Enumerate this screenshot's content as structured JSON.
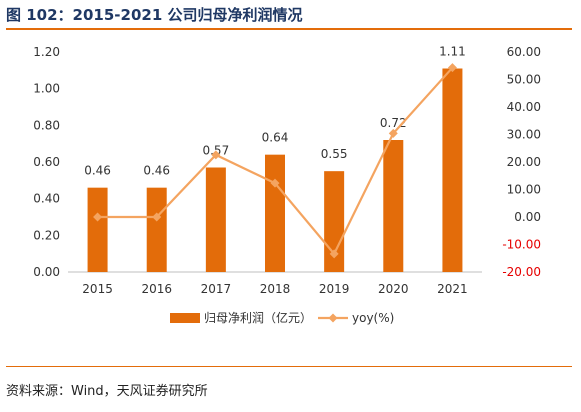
{
  "title": "图 102：2015-2021 公司归母净利润情况",
  "source": "资料来源：Wind，天风证券研究所",
  "colors": {
    "bar": "#e36c0a",
    "line": "#f4a460",
    "negative_tick": "#e60000",
    "title": "#1f3864",
    "rule": "#e36c0a"
  },
  "chart_data": {
    "type": "bar",
    "categories": [
      "2015",
      "2016",
      "2017",
      "2018",
      "2019",
      "2020",
      "2021"
    ],
    "series": [
      {
        "name": "归母净利润（亿元）",
        "type": "bar",
        "axis": "left",
        "values": [
          0.46,
          0.46,
          0.57,
          0.64,
          0.55,
          0.72,
          1.11
        ],
        "labels": [
          "0.46",
          "0.46",
          "0.57",
          "0.64",
          "0.55",
          "0.72",
          "1.11"
        ]
      },
      {
        "name": "yoy(%)",
        "type": "line",
        "axis": "right",
        "marker": "diamond",
        "values": [
          0,
          0,
          22.6,
          12.3,
          -13.4,
          30.4,
          54.3
        ]
      }
    ],
    "y_left": {
      "range": [
        0,
        1.2
      ],
      "ticks": [
        "0.00",
        "0.20",
        "0.40",
        "0.60",
        "0.80",
        "1.00",
        "1.20"
      ]
    },
    "y_right": {
      "range": [
        -20,
        60
      ],
      "ticks": [
        "-20.00",
        "-10.00",
        "0.00",
        "10.00",
        "20.00",
        "30.00",
        "40.00",
        "50.00",
        "60.00"
      ]
    },
    "grid": false,
    "legend": "bottom-center"
  }
}
